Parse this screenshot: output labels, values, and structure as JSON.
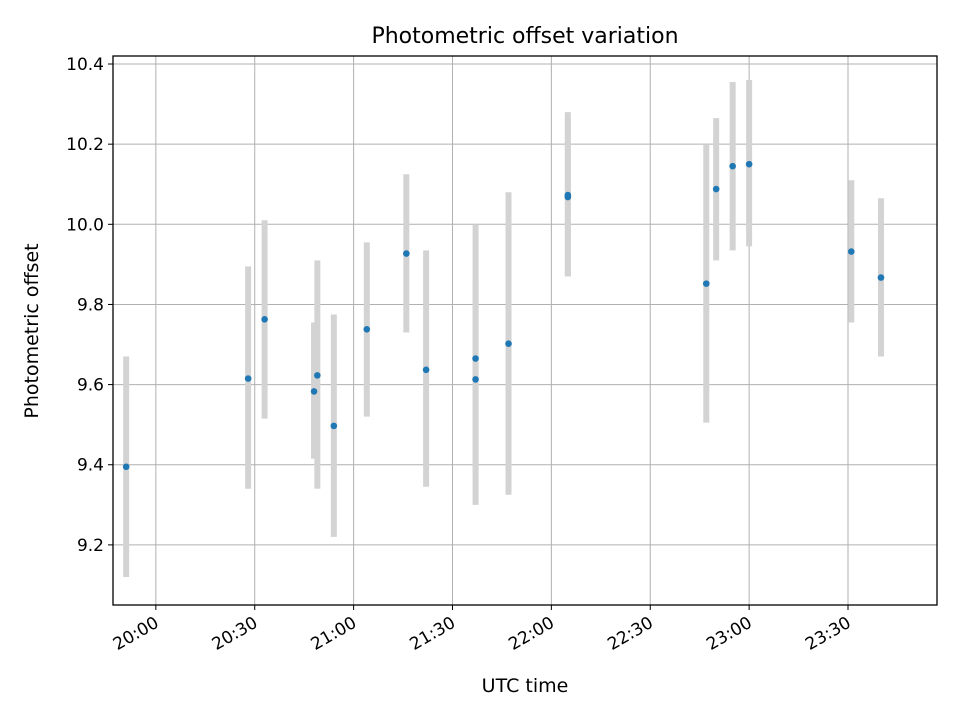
{
  "chart_data": {
    "type": "scatter",
    "title": "Photometric offset variation",
    "xlabel": "UTC time",
    "ylabel": "Photometric offset",
    "x_is_time": true,
    "xlim": [
      "19:47",
      "23:57"
    ],
    "ylim": [
      9.05,
      10.42
    ],
    "grid": true,
    "marker_color": "#1f77b4",
    "errorbar_color": "#d3d3d3",
    "x_ticks": [
      "20:00",
      "20:30",
      "21:00",
      "21:30",
      "22:00",
      "22:30",
      "23:00",
      "23:30"
    ],
    "y_ticks": [
      "9.2",
      "9.4",
      "9.6",
      "9.8",
      "10.0",
      "10.2",
      "10.4"
    ],
    "points": [
      {
        "x": "19:51",
        "y": 9.395,
        "lo": 9.12,
        "hi": 9.67
      },
      {
        "x": "20:28",
        "y": 9.615,
        "lo": 9.34,
        "hi": 9.895
      },
      {
        "x": "20:33",
        "y": 9.763,
        "lo": 9.515,
        "hi": 10.01
      },
      {
        "x": "20:48",
        "y": 9.583,
        "lo": 9.415,
        "hi": 9.755
      },
      {
        "x": "20:49",
        "y": 9.623,
        "lo": 9.34,
        "hi": 9.91
      },
      {
        "x": "20:54",
        "y": 9.497,
        "lo": 9.22,
        "hi": 9.775
      },
      {
        "x": "21:04",
        "y": 9.738,
        "lo": 9.52,
        "hi": 9.955
      },
      {
        "x": "21:16",
        "y": 9.927,
        "lo": 9.73,
        "hi": 10.125
      },
      {
        "x": "21:22",
        "y": 9.637,
        "lo": 9.345,
        "hi": 9.935
      },
      {
        "x": "21:37",
        "y": 9.613,
        "lo": 9.37,
        "hi": 9.86
      },
      {
        "x": "21:37",
        "y": 9.665,
        "lo": 9.3,
        "hi": 10.0
      },
      {
        "x": "21:47",
        "y": 9.702,
        "lo": 9.325,
        "hi": 10.08
      },
      {
        "x": "22:05",
        "y": 10.068,
        "lo": 9.87,
        "hi": 10.265
      },
      {
        "x": "22:05",
        "y": 10.073,
        "lo": 9.87,
        "hi": 10.28
      },
      {
        "x": "22:47",
        "y": 9.852,
        "lo": 9.505,
        "hi": 10.2
      },
      {
        "x": "22:50",
        "y": 10.088,
        "lo": 9.91,
        "hi": 10.265
      },
      {
        "x": "22:55",
        "y": 10.145,
        "lo": 9.935,
        "hi": 10.355
      },
      {
        "x": "23:00",
        "y": 10.15,
        "lo": 9.945,
        "hi": 10.36
      },
      {
        "x": "23:31",
        "y": 9.932,
        "lo": 9.755,
        "hi": 10.11
      },
      {
        "x": "23:40",
        "y": 9.867,
        "lo": 9.67,
        "hi": 10.065
      }
    ]
  }
}
